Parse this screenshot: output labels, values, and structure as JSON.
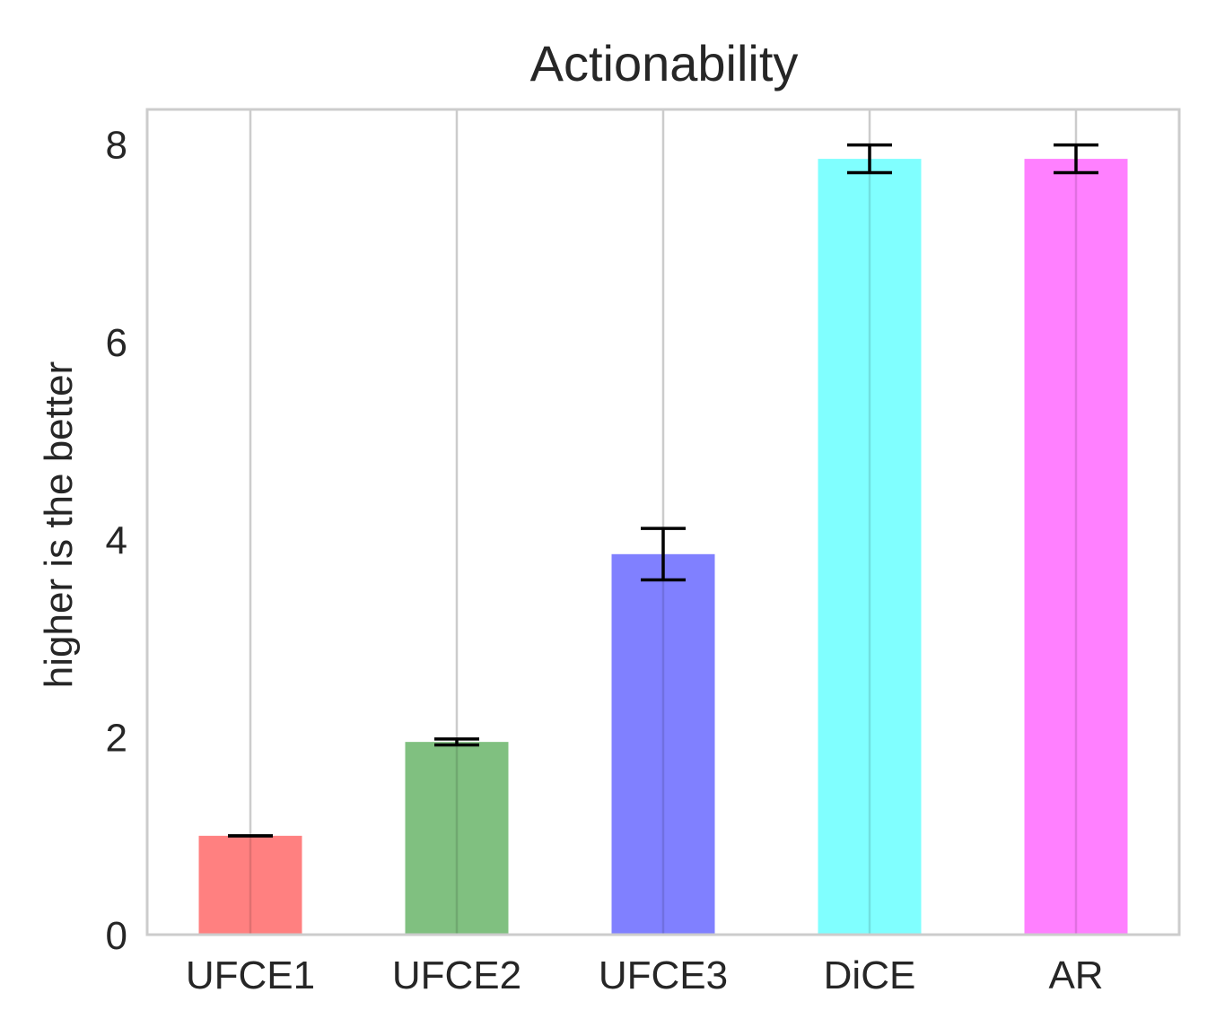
{
  "chart_data": {
    "type": "bar",
    "title": "Actionability",
    "xlabel": "",
    "ylabel": "higher is the better",
    "categories": [
      "UFCE1",
      "UFCE2",
      "UFCE3",
      "DiCE",
      "AR"
    ],
    "values": [
      1.0,
      1.95,
      3.85,
      7.85,
      7.85
    ],
    "errors": [
      0.0,
      0.03,
      0.26,
      0.14,
      0.14
    ],
    "colors": [
      "#ff8080",
      "#80c080",
      "#8080ff",
      "#80ffff",
      "#ff80ff"
    ],
    "yticks": [
      0,
      2,
      4,
      6,
      8
    ],
    "ylim": [
      0,
      8.35
    ],
    "grid": "x-only",
    "legend": "none"
  }
}
